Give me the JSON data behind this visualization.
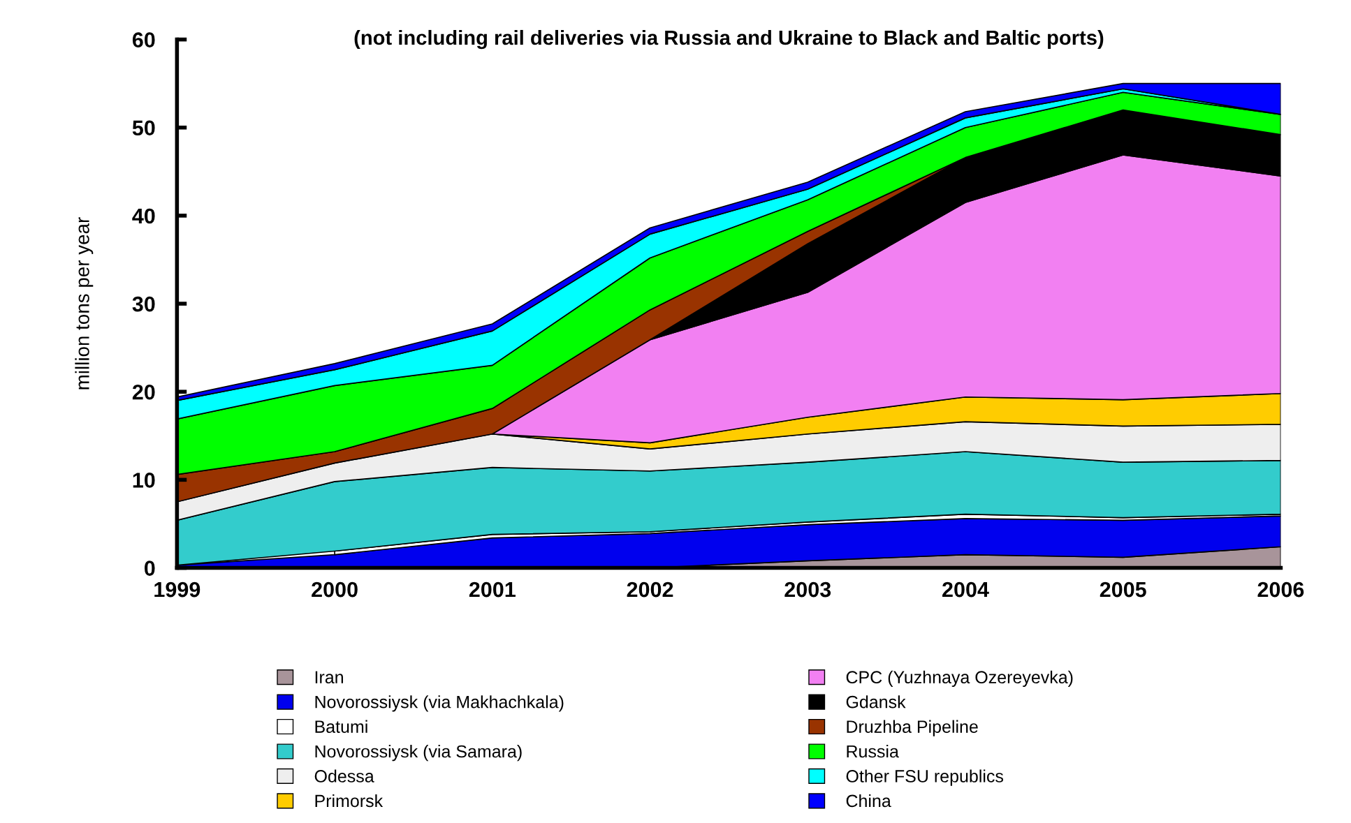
{
  "chart_data": {
    "type": "area",
    "stacked": true,
    "title": "(not including rail deliveries via Russia and Ukraine to Black and Baltic ports)",
    "ylabel": "million tons per year",
    "x": [
      1999,
      2000,
      2001,
      2002,
      2003,
      2004,
      2005,
      2006
    ],
    "xlim": [
      1999,
      2006
    ],
    "xticks": [
      1999,
      2000,
      2001,
      2002,
      2003,
      2004,
      2005,
      2006
    ],
    "ylim": [
      0,
      60
    ],
    "yticks": [
      0,
      10,
      20,
      30,
      40,
      50,
      60
    ],
    "grid": false,
    "legend": "bottom",
    "series": [
      {
        "name": "Iran",
        "color": "#a8949a",
        "values": [
          null,
          null,
          null,
          0,
          0.8,
          1.5,
          1.2,
          2.4
        ]
      },
      {
        "name": "Novorossiysk (via Makhachkala)",
        "color": "#0000ee",
        "values": [
          0.3,
          1.5,
          3.4,
          3.9,
          4.1,
          4.1,
          4.2,
          3.5
        ]
      },
      {
        "name": "Batumi",
        "color": "#ffffff",
        "values": [
          null,
          0.4,
          0.4,
          0.2,
          0.3,
          0.5,
          0.3,
          0.2
        ]
      },
      {
        "name": "Novorossiysk (via Samara)",
        "color": "#33cccc",
        "values": [
          5.1,
          7.9,
          7.6,
          6.9,
          6.8,
          7.1,
          6.3,
          6.1
        ]
      },
      {
        "name": "Odessa",
        "color": "#eeeeee",
        "values": [
          2.1,
          2.1,
          3.8,
          2.5,
          3.2,
          3.4,
          4.1,
          4.1
        ]
      },
      {
        "name": "Primorsk",
        "color": "#ffcc00",
        "values": [
          null,
          null,
          0,
          0.7,
          1.9,
          2.8,
          3.0,
          3.5
        ]
      },
      {
        "name": "CPC (Yuzhnaya Ozereyevka)",
        "color": "#f280f2",
        "values": [
          null,
          null,
          0,
          11.7,
          14.2,
          22.1,
          27.8,
          24.7
        ]
      },
      {
        "name": "Gdansk",
        "color": "#000000",
        "values": [
          null,
          null,
          null,
          0,
          5.5,
          5.1,
          5.1,
          4.7
        ]
      },
      {
        "name": "Druzhba Pipeline",
        "color": "#993300",
        "values": [
          3.1,
          1.3,
          2.9,
          3.4,
          1.4,
          0,
          null,
          null
        ]
      },
      {
        "name": "Russia",
        "color": "#00ff00",
        "values": [
          6.3,
          7.5,
          4.9,
          5.9,
          3.6,
          3.4,
          2.0,
          2.3
        ]
      },
      {
        "name": "Other FSU republics",
        "color": "#00ffff",
        "values": [
          2.1,
          1.8,
          3.9,
          2.7,
          1.2,
          1.1,
          0.4,
          0
        ]
      },
      {
        "name": "China",
        "color": "#0000ff",
        "values": [
          0.4,
          0.7,
          0.8,
          0.7,
          0.8,
          0.7,
          0.6,
          3.5
        ]
      }
    ]
  }
}
